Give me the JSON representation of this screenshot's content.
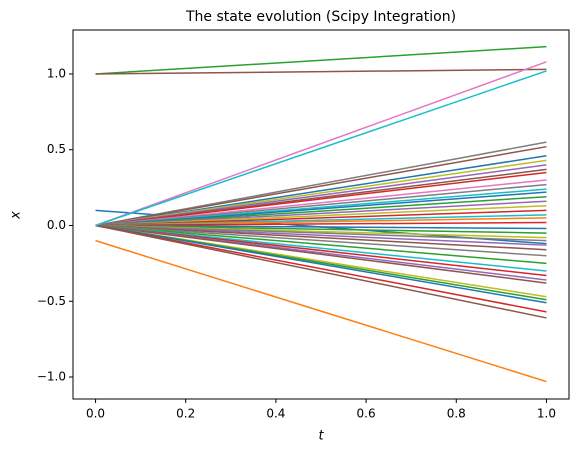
{
  "chart_data": {
    "type": "line",
    "title": "The state evolution (Scipy Integration)",
    "x_label": "t",
    "y_label": "x",
    "x": [
      0,
      1
    ],
    "xlim": [
      -0.05,
      1.05
    ],
    "xticks": [
      {
        "value": 0,
        "label": "0.0"
      },
      {
        "value": 0.2,
        "label": "0.2"
      },
      {
        "value": 0.4,
        "label": "0.4"
      },
      {
        "value": 0.6,
        "label": "0.6"
      },
      {
        "value": 0.8,
        "label": "0.8"
      },
      {
        "value": 1,
        "label": "1.0"
      }
    ],
    "ylim": [
      -1.145,
      1.29
    ],
    "yticks": [
      {
        "value": -1,
        "label": "−1.0"
      },
      {
        "value": -0.5,
        "label": "−0.5"
      },
      {
        "value": 0,
        "label": "0.0"
      },
      {
        "value": 0.5,
        "label": "0.5"
      },
      {
        "value": 1,
        "label": "1.0"
      }
    ],
    "grid": false,
    "series": [
      {
        "color": "#1f77b4",
        "values": [
          0.1,
          -0.12
        ]
      },
      {
        "color": "#ff7f0e",
        "values": [
          -0.1,
          -1.03
        ]
      },
      {
        "color": "#7f7f7f",
        "values": [
          0,
          0.55
        ]
      },
      {
        "color": "#8c564b",
        "values": [
          0,
          0.52
        ]
      },
      {
        "color": "#1f77b4",
        "values": [
          0,
          0.46
        ]
      },
      {
        "color": "#bcbd22",
        "values": [
          0,
          0.43
        ]
      },
      {
        "color": "#9467bd",
        "values": [
          0,
          0.4
        ]
      },
      {
        "color": "#8c564b",
        "values": [
          0,
          0.37
        ]
      },
      {
        "color": "#d62728",
        "values": [
          0,
          0.35
        ]
      },
      {
        "color": "#e377c2",
        "values": [
          0,
          0.3
        ]
      },
      {
        "color": "#7f7f7f",
        "values": [
          0,
          0.27
        ]
      },
      {
        "color": "#17becf",
        "values": [
          0,
          0.24
        ]
      },
      {
        "color": "#1f77b4",
        "values": [
          0,
          0.22
        ]
      },
      {
        "color": "#2ca02c",
        "values": [
          0,
          0.19
        ]
      },
      {
        "color": "#9467bd",
        "values": [
          0,
          0.16
        ]
      },
      {
        "color": "#bcbd22",
        "values": [
          0,
          0.13
        ]
      },
      {
        "color": "#d62728",
        "values": [
          0,
          0.1
        ]
      },
      {
        "color": "#17becf",
        "values": [
          0,
          0.07
        ]
      },
      {
        "color": "#ff7f0e",
        "values": [
          0,
          0.05
        ]
      },
      {
        "color": "#d62728",
        "values": [
          0,
          0.02
        ]
      },
      {
        "color": "#1f77b4",
        "values": [
          0,
          -0.02
        ]
      },
      {
        "color": "#2ca02c",
        "values": [
          0,
          -0.05
        ]
      },
      {
        "color": "#bcbd22",
        "values": [
          0,
          -0.08
        ]
      },
      {
        "color": "#7f7f7f",
        "values": [
          0,
          -0.1
        ]
      },
      {
        "color": "#9467bd",
        "values": [
          0,
          -0.13
        ]
      },
      {
        "color": "#8c564b",
        "values": [
          0,
          -0.16
        ]
      },
      {
        "color": "#7f7f7f",
        "values": [
          0,
          -0.2
        ]
      },
      {
        "color": "#2ca02c",
        "values": [
          0,
          -0.25
        ]
      },
      {
        "color": "#17becf",
        "values": [
          0,
          -0.3
        ]
      },
      {
        "color": "#d62728",
        "values": [
          0,
          -0.33
        ]
      },
      {
        "color": "#9467bd",
        "values": [
          0,
          -0.36
        ]
      },
      {
        "color": "#8c564b",
        "values": [
          0,
          -0.38
        ]
      },
      {
        "color": "#bcbd22",
        "values": [
          0,
          -0.47
        ]
      },
      {
        "color": "#2ca02c",
        "values": [
          0,
          -0.49
        ]
      },
      {
        "color": "#1f77b4",
        "values": [
          0,
          -0.51
        ]
      },
      {
        "color": "#d62728",
        "values": [
          0,
          -0.57
        ]
      },
      {
        "color": "#8c564b",
        "values": [
          0,
          -0.61
        ]
      },
      {
        "color": "#2ca02c",
        "values": [
          1,
          1.18
        ]
      },
      {
        "color": "#8c564b",
        "values": [
          1,
          1.03
        ]
      },
      {
        "color": "#e377c2",
        "values": [
          0,
          1.08
        ]
      },
      {
        "color": "#17becf",
        "values": [
          0,
          1.02
        ]
      }
    ]
  }
}
